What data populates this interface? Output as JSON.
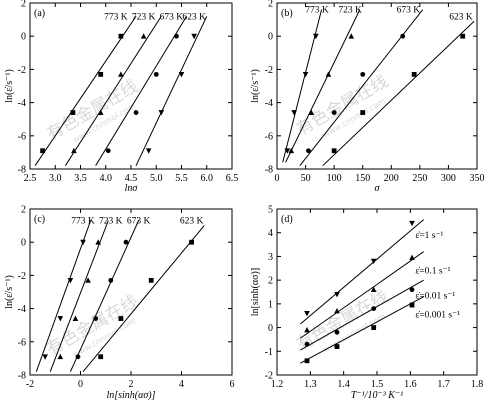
{
  "colors": {
    "ink": "#000000",
    "watermark": "#a9a9a9",
    "background": "#ffffff"
  },
  "watermark": {
    "cn": "有色金属在线",
    "url": "www.cnnmol.com"
  },
  "chart_data": [
    {
      "id": "a",
      "panel_label": "(a)",
      "type": "scatter",
      "xlabel": "lnσ",
      "ylabel": "ln(ε̇/s⁻¹)",
      "xlim": [
        2.5,
        6.5
      ],
      "ylim": [
        -8,
        2
      ],
      "xticks": [
        2.5,
        3.0,
        3.5,
        4.0,
        4.5,
        5.0,
        5.5,
        6.0,
        6.5
      ],
      "xtick_labels": [
        "2.5",
        "3.0",
        "3.5",
        "4.0",
        "4.5",
        "5.0",
        "5.5",
        "6.0",
        "6.5"
      ],
      "yticks": [
        -8,
        -6,
        -4,
        -2,
        0,
        2
      ],
      "ytick_labels": [
        "-8",
        "-6",
        "-4",
        "-2",
        "0",
        "2"
      ],
      "series": [
        {
          "name": "773 K",
          "marker": "square",
          "x": [
            2.75,
            3.35,
            3.9,
            4.3
          ],
          "y": [
            -6.9,
            -4.6,
            -2.3,
            0
          ],
          "fit": [
            [
              2.6,
              -7.8
            ],
            [
              4.6,
              1.2
            ]
          ],
          "label_at": [
            4.2,
            1.2
          ]
        },
        {
          "name": "723 K",
          "marker": "triangle",
          "x": [
            3.37,
            3.9,
            4.3,
            4.75
          ],
          "y": [
            -6.9,
            -4.6,
            -2.3,
            0
          ],
          "fit": [
            [
              3.2,
              -7.8
            ],
            [
              5.1,
              1.2
            ]
          ],
          "label_at": [
            4.75,
            1.2
          ]
        },
        {
          "name": "673 K",
          "marker": "circle",
          "x": [
            4.05,
            4.6,
            5.0,
            5.4
          ],
          "y": [
            -6.9,
            -4.6,
            -2.3,
            0
          ],
          "fit": [
            [
              3.8,
              -7.8
            ],
            [
              5.6,
              1.2
            ]
          ],
          "label_at": [
            5.3,
            1.2
          ]
        },
        {
          "name": "623 K",
          "marker": "triangle-down",
          "x": [
            4.85,
            5.1,
            5.5,
            5.75
          ],
          "y": [
            -6.9,
            -4.6,
            -2.3,
            0
          ],
          "fit": [
            [
              4.6,
              -7.8
            ],
            [
              6.0,
              1.2
            ]
          ],
          "label_at": [
            5.75,
            1.2
          ]
        }
      ]
    },
    {
      "id": "b",
      "panel_label": "(b)",
      "type": "scatter",
      "xlabel": "σ",
      "ylabel": "ln(ε̇/s⁻¹)",
      "xlim": [
        0,
        350
      ],
      "ylim": [
        -8,
        2
      ],
      "xticks": [
        0,
        50,
        100,
        150,
        200,
        250,
        300,
        350
      ],
      "xtick_labels": [
        "0",
        "50",
        "100",
        "150",
        "200",
        "250",
        "300",
        "350"
      ],
      "yticks": [
        -8,
        -6,
        -4,
        -2,
        0,
        2
      ],
      "ytick_labels": [
        "-8",
        "-6",
        "-4",
        "-2",
        "0",
        "2"
      ],
      "series": [
        {
          "name": "773 K",
          "marker": "triangle-down",
          "x": [
            18,
            30,
            50,
            68
          ],
          "y": [
            -6.9,
            -4.6,
            -2.3,
            0
          ],
          "fit": [
            [
              10,
              -7.6
            ],
            [
              78,
              1.6
            ]
          ],
          "label_at": [
            70,
            1.6
          ]
        },
        {
          "name": "723 K",
          "marker": "triangle",
          "x": [
            25,
            60,
            90,
            130
          ],
          "y": [
            -6.9,
            -4.6,
            -2.3,
            0
          ],
          "fit": [
            [
              15,
              -7.6
            ],
            [
              145,
              1.6
            ]
          ],
          "label_at": [
            128,
            1.6
          ]
        },
        {
          "name": "673 K",
          "marker": "circle",
          "x": [
            55,
            100,
            150,
            220
          ],
          "y": [
            -6.9,
            -4.6,
            -2.3,
            0
          ],
          "fit": [
            [
              40,
              -7.8
            ],
            [
              255,
              1.6
            ]
          ],
          "label_at": [
            230,
            1.6
          ]
        },
        {
          "name": "623 K",
          "marker": "square",
          "x": [
            100,
            150,
            240,
            325
          ],
          "y": [
            -6.9,
            -4.6,
            -2.3,
            0
          ],
          "fit": [
            [
              80,
              -7.8
            ],
            [
              345,
              0.9
            ]
          ],
          "label_at": [
            322,
            1.2
          ]
        }
      ]
    },
    {
      "id": "c",
      "panel_label": "(c)",
      "type": "scatter",
      "xlabel": "ln[sinh(ασ)]",
      "ylabel": "ln(ε̇/s⁻¹)",
      "xlim": [
        -2,
        6
      ],
      "ylim": [
        -8,
        2
      ],
      "xticks": [
        -2,
        0,
        2,
        4,
        6
      ],
      "xtick_labels": [
        "-2",
        "0",
        "2",
        "4",
        "6"
      ],
      "yticks": [
        -8,
        -6,
        -4,
        -2,
        0,
        2
      ],
      "ytick_labels": [
        "-8",
        "-6",
        "-4",
        "-2",
        "0",
        "2"
      ],
      "series": [
        {
          "name": "773 K",
          "marker": "triangle-down",
          "x": [
            -1.4,
            -0.8,
            -0.4,
            0.1
          ],
          "y": [
            -6.9,
            -4.6,
            -2.3,
            0
          ],
          "fit": [
            [
              -1.75,
              -7.8
            ],
            [
              0.4,
              1.3
            ]
          ],
          "label_at": [
            0.1,
            1.3
          ]
        },
        {
          "name": "723 K",
          "marker": "triangle",
          "x": [
            -0.8,
            -0.2,
            0.3,
            0.7
          ],
          "y": [
            -6.9,
            -4.6,
            -2.3,
            0
          ],
          "fit": [
            [
              -1.2,
              -7.8
            ],
            [
              1.1,
              1.3
            ]
          ],
          "label_at": [
            1.2,
            1.3
          ]
        },
        {
          "name": "673 K",
          "marker": "circle",
          "x": [
            -0.1,
            0.6,
            1.2,
            1.8
          ],
          "y": [
            -6.9,
            -4.6,
            -2.3,
            0
          ],
          "fit": [
            [
              -0.4,
              -7.8
            ],
            [
              2.3,
              1.3
            ]
          ],
          "label_at": [
            2.3,
            1.3
          ]
        },
        {
          "name": "623 K",
          "marker": "square",
          "x": [
            0.8,
            1.6,
            2.8,
            4.4
          ],
          "y": [
            -6.9,
            -4.6,
            -2.3,
            0
          ],
          "fit": [
            [
              0.1,
              -7.8
            ],
            [
              4.9,
              1.0
            ]
          ],
          "label_at": [
            4.4,
            1.3
          ]
        }
      ]
    },
    {
      "id": "d",
      "panel_label": "(d)",
      "type": "scatter",
      "xlabel": "T⁻¹/10⁻³ K⁻¹",
      "ylabel": "ln[sinh(ασ)]",
      "xlim": [
        1.2,
        1.8
      ],
      "ylim": [
        -2,
        5
      ],
      "xticks": [
        1.2,
        1.3,
        1.4,
        1.5,
        1.6,
        1.7,
        1.8
      ],
      "xtick_labels": [
        "1.2",
        "1.3",
        "1.4",
        "1.5",
        "1.6",
        "1.7",
        "1.8"
      ],
      "yticks": [
        -2,
        -1,
        0,
        1,
        2,
        3,
        4,
        5
      ],
      "ytick_labels": [
        "-2",
        "-1",
        "0",
        "1",
        "2",
        "3",
        "4",
        "5"
      ],
      "series": [
        {
          "name": "ε̇=1 s⁻¹",
          "marker": "triangle-down",
          "x": [
            1.29,
            1.38,
            1.49,
            1.605
          ],
          "y": [
            0.6,
            1.4,
            2.8,
            4.4
          ],
          "fit": [
            [
              1.27,
              0.15
            ],
            [
              1.64,
              4.55
            ]
          ],
          "label_at": [
            1.615,
            3.9
          ]
        },
        {
          "name": "ε̇=0.1 s⁻¹",
          "marker": "triangle",
          "x": [
            1.29,
            1.38,
            1.49,
            1.605
          ],
          "y": [
            -0.1,
            0.7,
            1.6,
            2.95
          ],
          "fit": [
            [
              1.27,
              -0.45
            ],
            [
              1.64,
              3.2
            ]
          ],
          "label_at": [
            1.615,
            2.4
          ]
        },
        {
          "name": "ε̇=0.01 s⁻¹",
          "marker": "circle",
          "x": [
            1.29,
            1.38,
            1.49,
            1.605
          ],
          "y": [
            -0.7,
            -0.2,
            0.8,
            1.6
          ],
          "fit": [
            [
              1.27,
              -0.95
            ],
            [
              1.64,
              2.0
            ]
          ],
          "label_at": [
            1.615,
            1.35
          ]
        },
        {
          "name": "ε̇=0.001 s⁻¹",
          "marker": "square",
          "x": [
            1.29,
            1.38,
            1.49,
            1.605
          ],
          "y": [
            -1.4,
            -0.8,
            0,
            0.95
          ],
          "fit": [
            [
              1.27,
              -1.5
            ],
            [
              1.64,
              1.3
            ]
          ],
          "label_at": [
            1.615,
            0.55
          ]
        }
      ]
    }
  ]
}
